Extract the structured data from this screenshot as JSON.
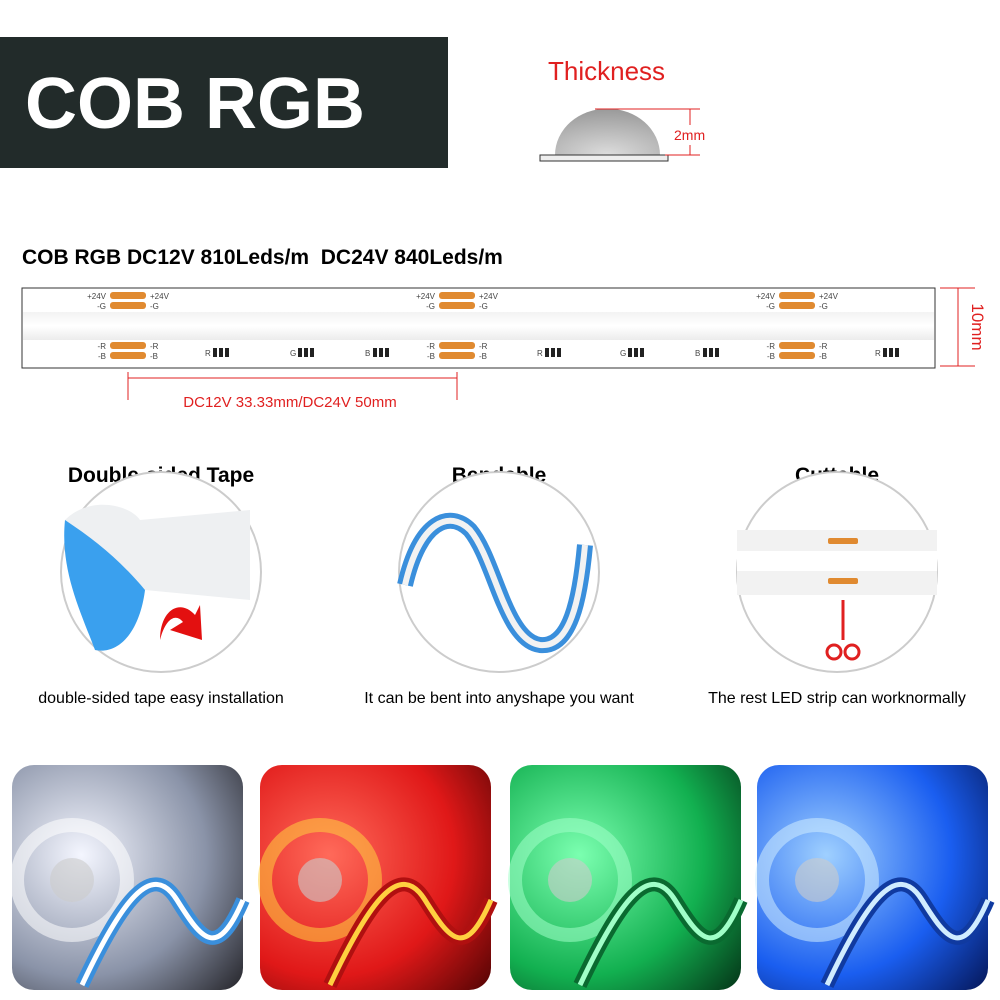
{
  "header": {
    "title": "COB RGB"
  },
  "thickness": {
    "label": "Thickness",
    "value": "2mm"
  },
  "spec": {
    "title": "COB RGB DC12V 810Leds/m  DC24V 840Leds/m",
    "width": "10mm",
    "cut_length": "DC12V 33.33mm/DC24V 50mm"
  },
  "strip_labels": {
    "plus": "+24V",
    "g": "-G",
    "r": "-R",
    "b": "-B",
    "red": "R",
    "green": "G",
    "blue": "B"
  },
  "features": [
    {
      "title": "Double-sided Tape",
      "caption": "double-sided tape easy installation"
    },
    {
      "title": "Bendable",
      "caption": "It can be bent into anyshape you want"
    },
    {
      "title": "Cuttable",
      "caption": "The rest LED strip can worknormally"
    }
  ]
}
